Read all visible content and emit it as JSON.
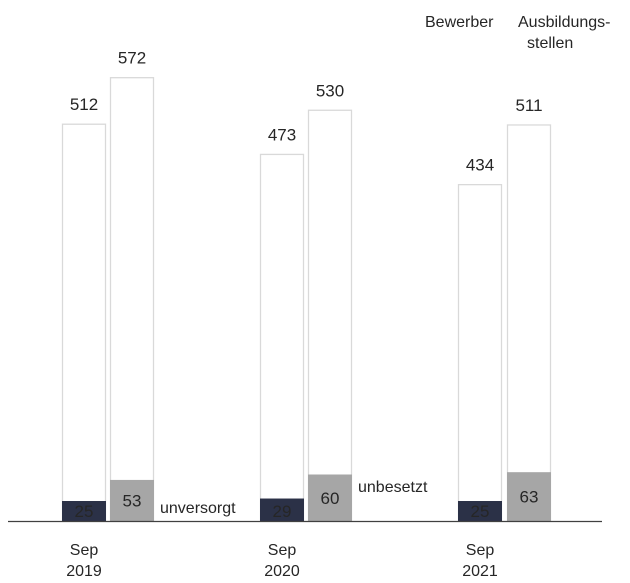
{
  "chart_data": {
    "type": "bar",
    "categories": [
      [
        "Sep",
        "2019"
      ],
      [
        "Sep",
        "2020"
      ],
      [
        "Sep",
        "2021"
      ]
    ],
    "series": [
      {
        "name": "Bewerber",
        "values": [
          512,
          473,
          434
        ],
        "sub_label": "unversorgt",
        "sub_values": [
          25,
          29,
          25
        ]
      },
      {
        "name": [
          "Ausbildungs-",
          "stellen"
        ],
        "values": [
          572,
          530,
          511
        ],
        "sub_label": "unbesetzt",
        "sub_values": [
          53,
          60,
          63
        ]
      }
    ],
    "ylim": [
      0,
      600
    ],
    "grid": false,
    "legend_placement": "top-right",
    "colors": {
      "outline": "#d9d9d9",
      "unversorgt": "#2b3147",
      "unbesetzt": "#a6a6a6",
      "text": "#262626",
      "unbesetzt_label": "#8c8c8c",
      "axis": "#404040"
    }
  }
}
